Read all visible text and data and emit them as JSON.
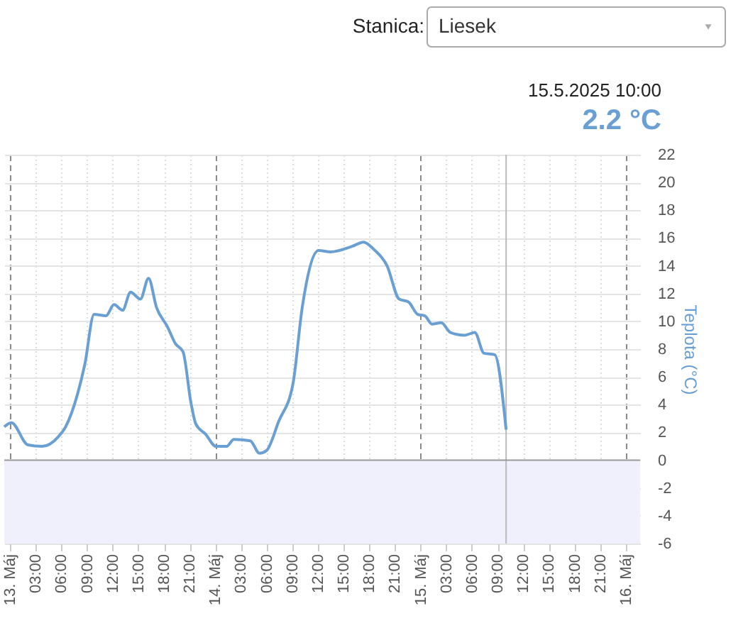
{
  "chart_data": {
    "type": "line",
    "annotations": [
      "Stanica:",
      "Liesek",
      "15.5.2025 10:00",
      "2.2 °C"
    ],
    "ylabel": "Teplota (°C)",
    "x": [
      "2025-05-12T23:20",
      "2025-05-13T00:10",
      "2025-05-13T02:06",
      "2025-05-13T03:45",
      "2025-05-13T05:40",
      "2025-05-13T06:30",
      "2025-05-13T07:55",
      "2025-05-13T08:45",
      "2025-05-13T09:50",
      "2025-05-13T11:14",
      "2025-05-13T12:10",
      "2025-05-13T13:10",
      "2025-05-13T14:06",
      "2025-05-13T15:15",
      "2025-05-13T16:12",
      "2025-05-13T17:08",
      "2025-05-13T18:25",
      "2025-05-13T19:20",
      "2025-05-13T20:14",
      "2025-05-13T21:10",
      "2025-05-13T21:44",
      "2025-05-13T22:50",
      "2025-05-14T00:06",
      "2025-05-14T01:20",
      "2025-05-14T02:10",
      "2025-05-14T04:05",
      "2025-05-14T05:10",
      "2025-05-14T06:00",
      "2025-05-14T07:25",
      "2025-05-14T09:05",
      "2025-05-14T10:10",
      "2025-05-14T12:05",
      "2025-05-14T13:30",
      "2025-05-14T16:00",
      "2025-05-14T17:20",
      "2025-05-14T18:30",
      "2025-05-14T20:05",
      "2025-05-14T21:30",
      "2025-05-14T22:35",
      "2025-05-14T23:40",
      "2025-05-15T00:30",
      "2025-05-15T01:20",
      "2025-05-15T02:25",
      "2025-05-15T03:30",
      "2025-05-15T05:10",
      "2025-05-15T06:20",
      "2025-05-15T07:25",
      "2025-05-15T08:40",
      "2025-05-15T10:00"
    ],
    "series": [
      {
        "color": "#6a9fd4",
        "values": [
          2.4,
          2.7,
          1.1,
          1.0,
          1.7,
          2.4,
          4.8,
          6.9,
          10.5,
          10.4,
          11.2,
          10.8,
          12.1,
          11.6,
          13.1,
          11.0,
          9.6,
          8.4,
          7.8,
          4.1,
          2.6,
          1.9,
          1.0,
          1.0,
          1.5,
          1.4,
          0.5,
          0.7,
          2.8,
          5.5,
          11.0,
          15.1,
          15.0,
          15.4,
          15.7,
          15.2,
          14.0,
          11.6,
          11.4,
          10.5,
          10.4,
          9.8,
          9.9,
          9.2,
          9.0,
          9.2,
          7.7,
          7.6,
          2.2
        ]
      }
    ],
    "xlim": [
      "2025-05-12T23:20",
      "2025-05-16T01:40"
    ],
    "xticks": [
      {
        "value": "2025-05-13T00:00",
        "label": "13. Máj"
      },
      {
        "value": "2025-05-13T03:00",
        "label": "03:00"
      },
      {
        "value": "2025-05-13T06:00",
        "label": "06:00"
      },
      {
        "value": "2025-05-13T09:00",
        "label": "09:00"
      },
      {
        "value": "2025-05-13T12:00",
        "label": "12:00"
      },
      {
        "value": "2025-05-13T15:00",
        "label": "15:00"
      },
      {
        "value": "2025-05-13T18:00",
        "label": "18:00"
      },
      {
        "value": "2025-05-13T21:00",
        "label": "21:00"
      },
      {
        "value": "2025-05-14T00:00",
        "label": "14. Máj"
      },
      {
        "value": "2025-05-14T03:00",
        "label": "03:00"
      },
      {
        "value": "2025-05-14T06:00",
        "label": "06:00"
      },
      {
        "value": "2025-05-14T09:00",
        "label": "09:00"
      },
      {
        "value": "2025-05-14T12:00",
        "label": "12:00"
      },
      {
        "value": "2025-05-14T15:00",
        "label": "15:00"
      },
      {
        "value": "2025-05-14T18:00",
        "label": "18:00"
      },
      {
        "value": "2025-05-14T21:00",
        "label": "21:00"
      },
      {
        "value": "2025-05-15T00:00",
        "label": "15. Máj"
      },
      {
        "value": "2025-05-15T03:00",
        "label": "03:00"
      },
      {
        "value": "2025-05-15T06:00",
        "label": "06:00"
      },
      {
        "value": "2025-05-15T09:00",
        "label": "09:00"
      },
      {
        "value": "2025-05-15T12:00",
        "label": "12:00"
      },
      {
        "value": "2025-05-15T15:00",
        "label": "15:00"
      },
      {
        "value": "2025-05-15T18:00",
        "label": "18:00"
      },
      {
        "value": "2025-05-15T21:00",
        "label": "21:00"
      },
      {
        "value": "2025-05-16T00:00",
        "label": "16. Máj"
      }
    ],
    "ylim": [
      -6,
      22
    ],
    "yticks": [
      -6,
      -4,
      -2,
      0,
      2,
      4,
      6,
      8,
      10,
      12,
      14,
      16,
      18,
      20,
      22
    ],
    "grid": true,
    "ref_lines": [
      {
        "axis": "x",
        "value": "2025-05-15T10:00",
        "line_style": "solid",
        "color": "#bbbbbb"
      },
      {
        "axis": "y",
        "value": 0,
        "line_style": "solid",
        "color": "#999999"
      }
    ],
    "bands": [
      {
        "axis": "y",
        "from": -6,
        "to": 0,
        "color": "#f0f0fc"
      }
    ]
  }
}
